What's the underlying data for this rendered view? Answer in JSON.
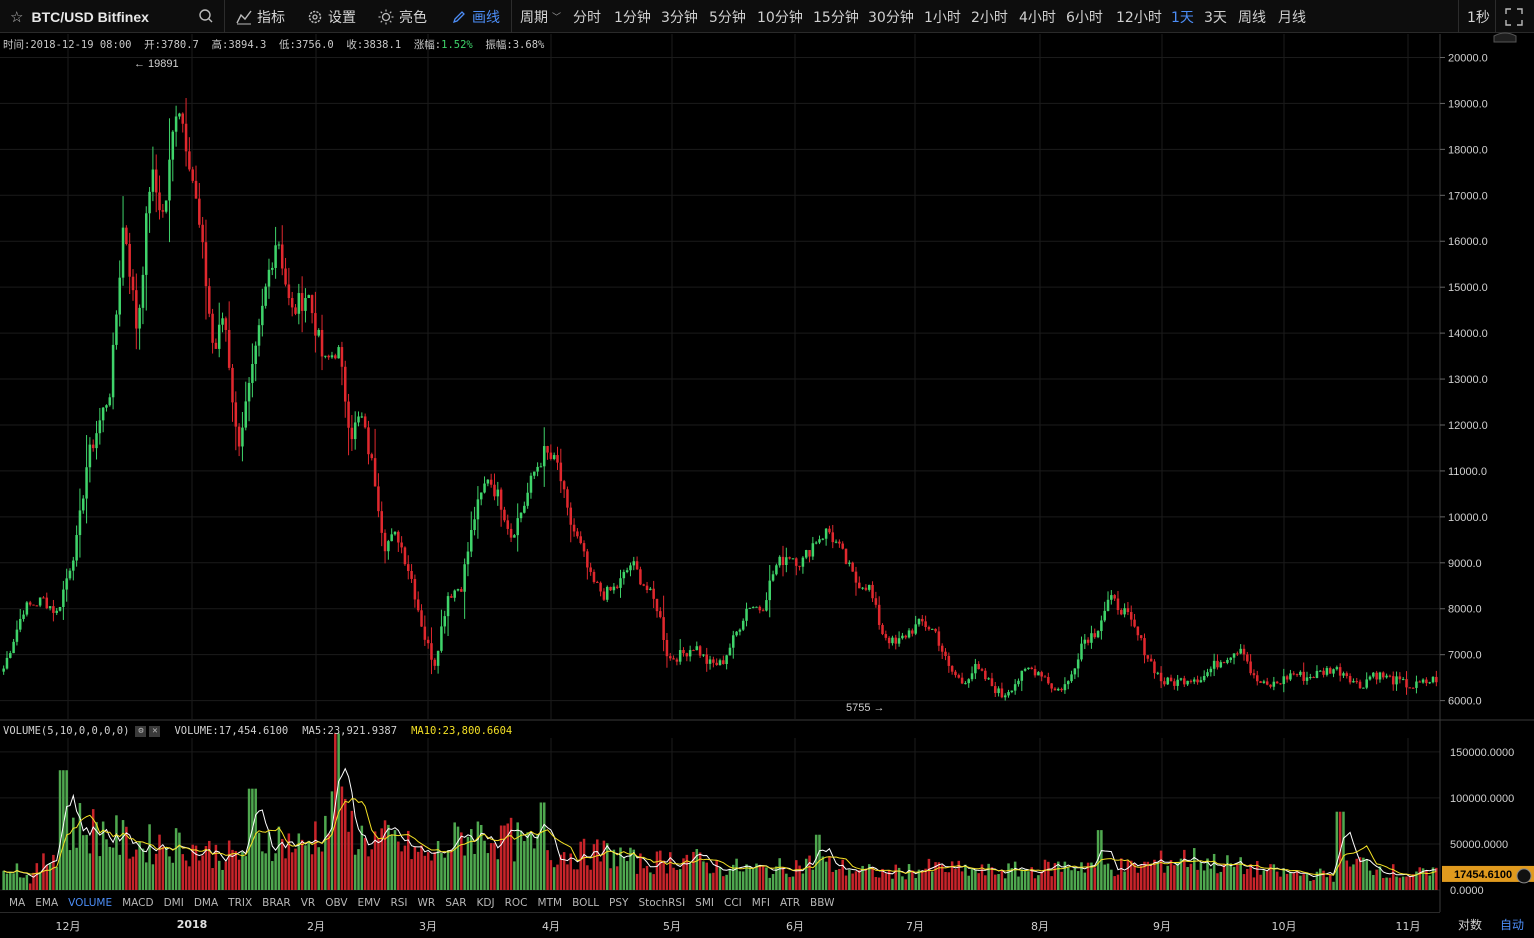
{
  "toolbar": {
    "symbol": "BTC/USD Bitfinex",
    "indicators_label": "指标",
    "settings_label": "设置",
    "theme_label": "亮色",
    "draw_label": "画线",
    "period_label": "周期",
    "periods": [
      "分时",
      "1分钟",
      "3分钟",
      "5分钟",
      "10分钟",
      "15分钟",
      "30分钟",
      "1小时",
      "2小时",
      "4小时",
      "6小时",
      "12小时",
      "1天",
      "3天",
      "周线",
      "月线"
    ],
    "active_period": "1天",
    "refresh_label": "1秒"
  },
  "info": {
    "time": "时间:2018-12-19 08:00",
    "open": "开:3780.7",
    "high": "高:3894.3",
    "low": "低:3756.0",
    "close": "收:3838.1",
    "change_label": "涨幅:",
    "change_value": "1.52%",
    "amplitude": "振幅:3.68%"
  },
  "volume_header": {
    "name": "VOLUME(5,10,0,0,0,0)",
    "volume": "VOLUME:17,454.6100",
    "ma5": "MA5:23,921.9387",
    "ma10": "MA10:23,800.6604"
  },
  "indicator_tabs": [
    "MA",
    "EMA",
    "VOLUME",
    "MACD",
    "DMI",
    "DMA",
    "TRIX",
    "BRAR",
    "VR",
    "OBV",
    "EMV",
    "RSI",
    "WR",
    "SAR",
    "KDJ",
    "ROC",
    "MTM",
    "BOLL",
    "PSY",
    "StochRSI",
    "SMI",
    "CCI",
    "MFI",
    "ATR",
    "BBW"
  ],
  "active_indicator": "VOLUME",
  "time_axis": [
    "12月",
    "2018",
    "2月",
    "3月",
    "4月",
    "5月",
    "6月",
    "7月",
    "8月",
    "9月",
    "10月",
    "11月"
  ],
  "bottom_right": {
    "log_label": "对数",
    "auto_label": "自动"
  },
  "colors": {
    "up": "#3fd36a",
    "down": "#e0282e",
    "ma5": "#ffffff",
    "ma10": "#f3e025",
    "accent": "#4c8df6",
    "price_tag": "#e09a1e"
  },
  "chart_data": {
    "type": "candlestick",
    "price_axis": {
      "ticks": [
        6000,
        7000,
        8000,
        9000,
        10000,
        11000,
        12000,
        13000,
        14000,
        15000,
        16000,
        17000,
        18000,
        19000,
        20000
      ],
      "ylim": [
        5600,
        20250
      ]
    },
    "volume_axis": {
      "ticks": [
        "0.0000",
        "50000.0000",
        "100000.0000",
        "150000.0000"
      ],
      "ylim": [
        0,
        165000
      ]
    },
    "annotations": {
      "max_label": "19891",
      "min_label": "5755",
      "current_volume": "17454.6100"
    },
    "price_keypoints": [
      [
        0,
        6700
      ],
      [
        6,
        8000
      ],
      [
        12,
        8200
      ],
      [
        16,
        7900
      ],
      [
        22,
        9500
      ],
      [
        25,
        11200
      ],
      [
        28,
        11900
      ],
      [
        32,
        12800
      ],
      [
        36,
        16500
      ],
      [
        40,
        14000
      ],
      [
        44,
        17500
      ],
      [
        48,
        16500
      ],
      [
        52,
        19200
      ],
      [
        56,
        17700
      ],
      [
        60,
        15500
      ],
      [
        63,
        13500
      ],
      [
        66,
        14500
      ],
      [
        70,
        11500
      ],
      [
        75,
        13300
      ],
      [
        79,
        15200
      ],
      [
        82,
        16200
      ],
      [
        86,
        14400
      ],
      [
        91,
        14900
      ],
      [
        96,
        13300
      ],
      [
        100,
        13700
      ],
      [
        104,
        11800
      ],
      [
        107,
        12200
      ],
      [
        111,
        10900
      ],
      [
        114,
        9400
      ],
      [
        118,
        9600
      ],
      [
        122,
        8700
      ],
      [
        126,
        7400
      ],
      [
        129,
        6800
      ],
      [
        133,
        8300
      ],
      [
        137,
        8500
      ],
      [
        141,
        10000
      ],
      [
        145,
        10900
      ],
      [
        149,
        10300
      ],
      [
        152,
        9600
      ],
      [
        156,
        10300
      ],
      [
        159,
        11000
      ],
      [
        162,
        11400
      ],
      [
        166,
        11100
      ],
      [
        169,
        10000
      ],
      [
        173,
        9300
      ],
      [
        176,
        8600
      ],
      [
        180,
        8300
      ],
      [
        184,
        8500
      ],
      [
        188,
        9000
      ],
      [
        192,
        8500
      ],
      [
        196,
        8000
      ],
      [
        199,
        6900
      ],
      [
        203,
        7000
      ],
      [
        207,
        7200
      ],
      [
        211,
        6800
      ],
      [
        215,
        6800
      ],
      [
        219,
        7400
      ],
      [
        223,
        8100
      ],
      [
        227,
        8000
      ],
      [
        231,
        8900
      ],
      [
        235,
        9200
      ],
      [
        239,
        9000
      ],
      [
        243,
        9500
      ],
      [
        247,
        9700
      ],
      [
        251,
        9200
      ],
      [
        255,
        8600
      ],
      [
        259,
        8500
      ],
      [
        263,
        7500
      ],
      [
        267,
        7200
      ],
      [
        271,
        7500
      ],
      [
        275,
        7700
      ],
      [
        279,
        7500
      ],
      [
        283,
        6700
      ],
      [
        287,
        6400
      ],
      [
        291,
        6700
      ],
      [
        295,
        6400
      ],
      [
        299,
        6100
      ],
      [
        303,
        6400
      ],
      [
        307,
        6700
      ],
      [
        311,
        6600
      ],
      [
        315,
        6200
      ],
      [
        319,
        6400
      ],
      [
        323,
        7300
      ],
      [
        327,
        7500
      ],
      [
        331,
        8200
      ],
      [
        335,
        8000
      ],
      [
        339,
        7500
      ],
      [
        343,
        6900
      ],
      [
        347,
        6400
      ],
      [
        351,
        6400
      ],
      [
        355,
        6500
      ],
      [
        359,
        6500
      ],
      [
        363,
        6800
      ],
      [
        367,
        7000
      ],
      [
        371,
        7200
      ],
      [
        374,
        6500
      ],
      [
        378,
        6300
      ],
      [
        382,
        6400
      ],
      [
        386,
        6600
      ],
      [
        390,
        6500
      ],
      [
        394,
        6600
      ],
      [
        398,
        6700
      ],
      [
        402,
        6600
      ],
      [
        406,
        6300
      ],
      [
        410,
        6600
      ],
      [
        414,
        6500
      ],
      [
        418,
        6400
      ],
      [
        422,
        6300
      ],
      [
        426,
        6400
      ],
      [
        430,
        6500
      ]
    ],
    "volume_ma_keypoints": [
      [
        0,
        35000
      ],
      [
        8,
        12000
      ],
      [
        16,
        45000
      ],
      [
        22,
        70000
      ],
      [
        30,
        62000
      ],
      [
        40,
        48000
      ],
      [
        50,
        52000
      ],
      [
        60,
        42000
      ],
      [
        70,
        36000
      ],
      [
        80,
        58000
      ],
      [
        90,
        46000
      ],
      [
        100,
        85000
      ],
      [
        108,
        55000
      ],
      [
        118,
        52000
      ],
      [
        128,
        35000
      ],
      [
        140,
        62000
      ],
      [
        150,
        58000
      ],
      [
        160,
        45000
      ],
      [
        172,
        38000
      ],
      [
        182,
        40000
      ],
      [
        192,
        28000
      ],
      [
        205,
        35000
      ],
      [
        215,
        25000
      ],
      [
        230,
        22000
      ],
      [
        245,
        30000
      ],
      [
        255,
        22000
      ],
      [
        265,
        18000
      ],
      [
        280,
        24000
      ],
      [
        295,
        20000
      ],
      [
        310,
        22000
      ],
      [
        325,
        28000
      ],
      [
        340,
        24000
      ],
      [
        355,
        35000
      ],
      [
        370,
        26000
      ],
      [
        385,
        18000
      ],
      [
        400,
        16000
      ],
      [
        408,
        30000
      ],
      [
        420,
        18000
      ],
      [
        432,
        17000
      ]
    ],
    "volume_spikes": [
      [
        18,
        130000
      ],
      [
        75,
        110000
      ],
      [
        100,
        170000
      ],
      [
        150,
        70000
      ],
      [
        162,
        95000
      ],
      [
        245,
        60000
      ],
      [
        330,
        65000
      ],
      [
        402,
        85000
      ]
    ],
    "candle_count": 433
  }
}
